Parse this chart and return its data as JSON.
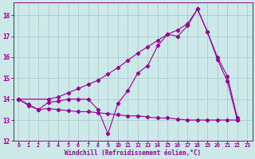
{
  "xlabel": "Windchill (Refroidissement éolien,°C)",
  "bg_color": "#cce8e8",
  "grid_color": "#aacccc",
  "line_color": "#990099",
  "xlim": [
    -0.5,
    23.5
  ],
  "ylim": [
    12,
    18.6
  ],
  "yticks": [
    12,
    13,
    14,
    15,
    16,
    17,
    18
  ],
  "xticks": [
    0,
    1,
    2,
    3,
    4,
    5,
    6,
    7,
    8,
    9,
    10,
    11,
    12,
    13,
    14,
    15,
    16,
    17,
    18,
    19,
    20,
    21,
    22,
    23
  ],
  "series1_x": [
    0,
    1,
    2,
    3,
    4,
    5,
    6,
    7,
    8,
    9,
    10,
    11,
    12,
    13,
    14,
    15,
    16,
    17,
    18,
    19,
    20,
    21,
    22
  ],
  "series1_y": [
    14.0,
    13.7,
    13.5,
    13.85,
    13.9,
    14.0,
    14.0,
    14.0,
    13.5,
    12.35,
    13.8,
    14.4,
    15.25,
    15.6,
    16.55,
    17.1,
    17.0,
    17.5,
    18.3,
    17.2,
    15.9,
    14.85,
    13.0
  ],
  "series2_x": [
    0,
    3,
    4,
    5,
    6,
    7,
    8,
    9,
    10,
    11,
    12,
    13,
    14,
    15,
    16,
    17,
    18,
    19,
    20,
    21,
    22
  ],
  "series2_y": [
    14.0,
    14.0,
    14.1,
    14.3,
    14.5,
    14.7,
    14.9,
    15.2,
    15.5,
    15.85,
    16.2,
    16.5,
    16.8,
    17.1,
    17.3,
    17.6,
    18.3,
    17.2,
    16.0,
    15.1,
    13.1
  ],
  "series3_x": [
    0,
    1,
    2,
    3,
    4,
    5,
    6,
    7,
    8,
    9,
    10,
    11,
    12,
    13,
    14,
    15,
    16,
    17,
    18,
    19,
    20,
    21,
    22
  ],
  "series3_y": [
    14.0,
    13.75,
    13.5,
    13.55,
    13.5,
    13.45,
    13.4,
    13.4,
    13.35,
    13.3,
    13.25,
    13.2,
    13.2,
    13.15,
    13.1,
    13.1,
    13.05,
    13.0,
    13.0,
    13.0,
    13.0,
    13.0,
    13.0
  ]
}
